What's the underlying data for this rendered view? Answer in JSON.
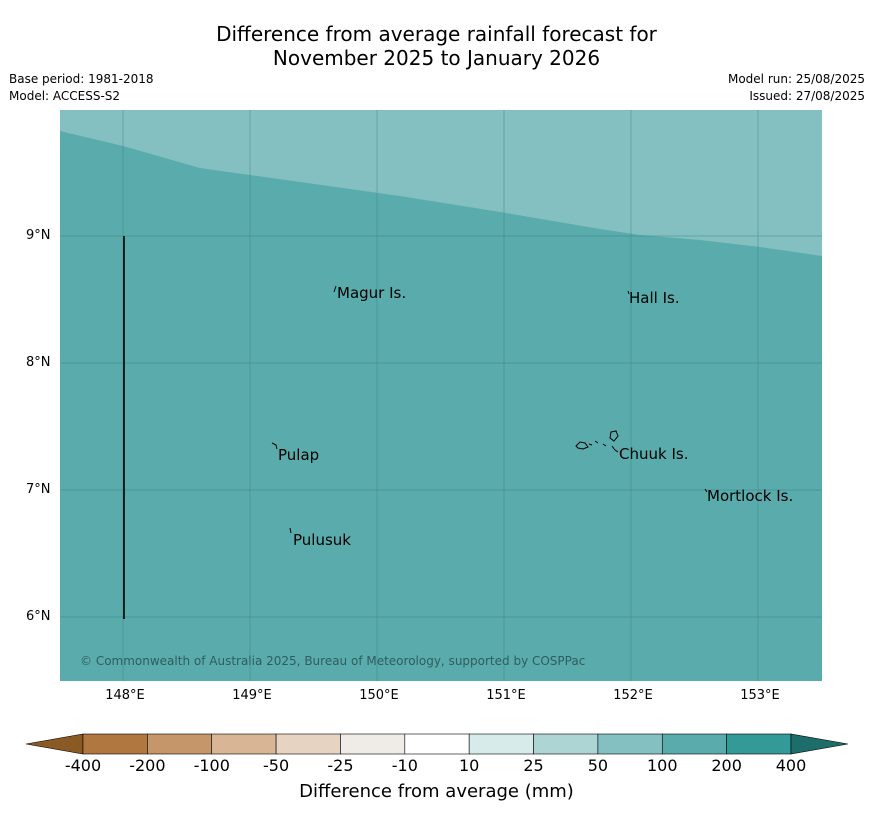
{
  "title": {
    "line1": "Difference from average rainfall forecast for",
    "line2": "November 2025 to January 2026"
  },
  "meta_left": {
    "base_period": "Base period: 1981-2018",
    "model": "Model: ACCESS-S2"
  },
  "meta_right": {
    "model_run": "Model run: 25/08/2025",
    "issued": "Issued: 27/08/2025"
  },
  "map": {
    "lat_labels": [
      "9°N",
      "8°N",
      "7°N",
      "6°N"
    ],
    "lon_labels": [
      "148°E",
      "149°E",
      "150°E",
      "151°E",
      "152°E",
      "153°E"
    ],
    "places": {
      "magur": "Magur Is.",
      "hall": "Hall Is.",
      "pulap": "Pulap",
      "chuuk": "Chuuk Is.",
      "mortlock": "Mortlock Is.",
      "pulusuk": "Pulusuk"
    },
    "colors": {
      "class_100_200": "#5aabac",
      "class_50_100": "#84c0c1"
    },
    "copyright": "© Commonwealth of Australia 2025, Bureau of Meteorology, supported by COSPPac"
  },
  "colorbar": {
    "ticks": [
      "-400",
      "-200",
      "-100",
      "-50",
      "-25",
      "-10",
      "10",
      "25",
      "50",
      "100",
      "200",
      "400"
    ],
    "colors": [
      "#8b5a24",
      "#b07840",
      "#c5966a",
      "#d7b595",
      "#e6d3c2",
      "#efebe7",
      "#ffffff",
      "#d6ebea",
      "#acd5d4",
      "#84c0c1",
      "#5aabac",
      "#339a97",
      "#1d6d6a"
    ],
    "label": "Difference from average (mm)"
  }
}
